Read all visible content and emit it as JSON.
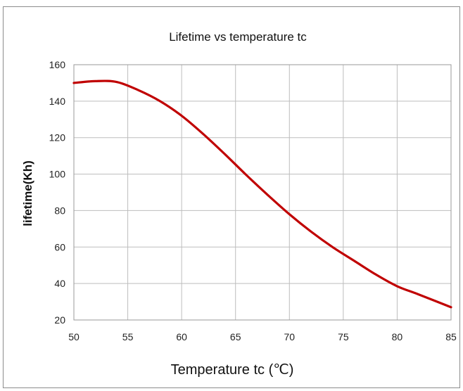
{
  "chart_data": {
    "type": "line",
    "title": "Lifetime vs temperature tc",
    "xlabel": "Temperature tc (℃)",
    "ylabel": "lifetime(Kh)",
    "xlim": [
      50,
      85
    ],
    "ylim": [
      20,
      160
    ],
    "x_ticks": [
      50,
      55,
      60,
      65,
      70,
      75,
      80,
      85
    ],
    "y_ticks": [
      20,
      40,
      60,
      80,
      100,
      120,
      140,
      160
    ],
    "grid": true,
    "series": [
      {
        "color": "#c00000",
        "x": [
          50,
          52,
          54,
          56,
          58,
          60,
          62,
          64,
          66,
          68,
          70,
          72,
          74,
          76,
          78,
          80,
          82,
          85
        ],
        "y": [
          150,
          151,
          150.5,
          146,
          140,
          132,
          122,
          111,
          99.5,
          88.5,
          78,
          68.5,
          60,
          52.5,
          45,
          38.5,
          34,
          27
        ]
      }
    ]
  }
}
